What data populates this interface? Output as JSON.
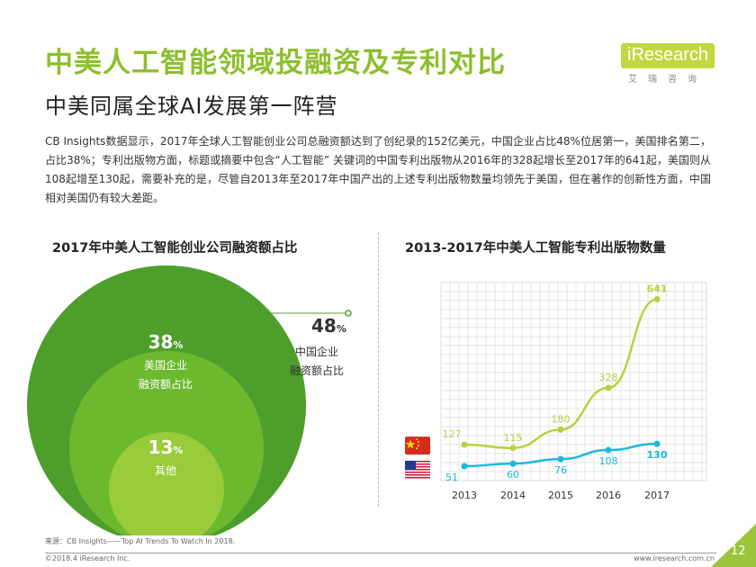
{
  "header": {
    "title": "中美人工智能领域投融资及专利对比",
    "subtitle": "中美同属全球AI发展第一阵营",
    "logo_text": "iResearch",
    "logo_sub": "艾瑞咨询"
  },
  "intro": "CB Insights数据显示，2017年全球人工智能创业公司总融资额达到了创纪录的152亿美元，中国企业占比48%位居第一，美国排名第二，占比38%；专利出版物方面，标题或摘要中包含“人工智能” 关键词的中国专利出版物从2016年的328起增长至2017年的641起，美国则从108起增至130起，需要补充的是，尽管自2013年至2017年中国产出的上述专利出版物数量均领先于美国，但在著作的创新性方面，中国相对美国仍有较大差距。",
  "colors": {
    "accent": "#8dbf2f",
    "china_line": "#b5d33d",
    "usa_line": "#1bb8e0",
    "outer_circle": "#4e9e2c",
    "mid_circle": "#6cb92f",
    "inner_circle": "#9acb3a",
    "page_tab": "#9cc53b"
  },
  "chart_data": [
    {
      "type": "bubble",
      "title": "2017年中美人工智能创业公司融资额占比",
      "items": [
        {
          "name_lines": [
            "中国企业",
            "融资额占比"
          ],
          "value": 48,
          "unit": "%"
        },
        {
          "name_lines": [
            "美国企业",
            "融资额占比"
          ],
          "value": 38,
          "unit": "%"
        },
        {
          "name_lines": [
            "其他"
          ],
          "value": 13,
          "unit": "%"
        }
      ]
    },
    {
      "type": "line",
      "title": "2013-2017年中美人工智能专利出版物数量",
      "categories": [
        "2013",
        "2014",
        "2015",
        "2016",
        "2017"
      ],
      "series": [
        {
          "country": "china",
          "icon": "china-flag-icon",
          "values": [
            127,
            115,
            180,
            328,
            641
          ]
        },
        {
          "country": "usa",
          "icon": "usa-flag-icon",
          "values": [
            51,
            60,
            76,
            108,
            130
          ]
        }
      ],
      "ylim": [
        0,
        700
      ],
      "grid": true
    }
  ],
  "footer": {
    "source": "来源：CB Insights——Top AI Trends To Watch In 2018.",
    "copyright": "©2018.4 iResearch Inc.",
    "website": "www.iresearch.com.cn",
    "page": "12"
  }
}
